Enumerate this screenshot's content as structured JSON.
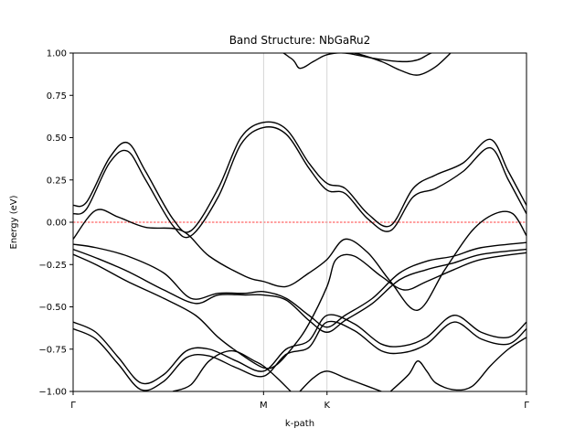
{
  "chart_data": {
    "type": "line",
    "title": "Band Structure: NbGaRu2",
    "xlabel": "k-path",
    "ylabel": "Energy (eV)",
    "xlim": [
      0,
      1
    ],
    "ylim": [
      -1.0,
      1.0
    ],
    "yticks": [
      -1.0,
      -0.75,
      -0.5,
      -0.25,
      0.0,
      0.25,
      0.5,
      0.75,
      1.0
    ],
    "ytick_labels": [
      "−1.00",
      "−0.75",
      "−0.50",
      "−0.25",
      "0.00",
      "0.25",
      "0.50",
      "0.75",
      "1.00"
    ],
    "xticks": [
      {
        "x": 0.0,
        "label": "Γ"
      },
      {
        "x": 0.42,
        "label": "M"
      },
      {
        "x": 0.56,
        "label": "K"
      },
      {
        "x": 1.0,
        "label": "Γ"
      }
    ],
    "vertical_lines": [
      0.42,
      0.56
    ],
    "fermi_level": 0.0,
    "fermi_line_color": "#ff0000",
    "band_color": "#000000",
    "grid": false,
    "series": [
      {
        "values": [
          [
            0.0,
            0.1
          ],
          [
            0.03,
            0.12
          ],
          [
            0.08,
            0.38
          ],
          [
            0.12,
            0.47
          ],
          [
            0.16,
            0.3
          ],
          [
            0.22,
            0.02
          ],
          [
            0.26,
            -0.05
          ],
          [
            0.32,
            0.2
          ],
          [
            0.37,
            0.5
          ],
          [
            0.42,
            0.59
          ],
          [
            0.47,
            0.55
          ],
          [
            0.52,
            0.35
          ],
          [
            0.56,
            0.23
          ],
          [
            0.6,
            0.2
          ],
          [
            0.65,
            0.05
          ],
          [
            0.7,
            -0.02
          ],
          [
            0.75,
            0.2
          ],
          [
            0.8,
            0.28
          ],
          [
            0.86,
            0.35
          ],
          [
            0.92,
            0.49
          ],
          [
            0.96,
            0.3
          ],
          [
            1.0,
            0.1
          ]
        ]
      },
      {
        "values": [
          [
            0.0,
            0.05
          ],
          [
            0.03,
            0.08
          ],
          [
            0.08,
            0.35
          ],
          [
            0.12,
            0.42
          ],
          [
            0.16,
            0.25
          ],
          [
            0.22,
            -0.02
          ],
          [
            0.26,
            -0.08
          ],
          [
            0.32,
            0.15
          ],
          [
            0.37,
            0.46
          ],
          [
            0.42,
            0.56
          ],
          [
            0.47,
            0.52
          ],
          [
            0.52,
            0.32
          ],
          [
            0.56,
            0.19
          ],
          [
            0.6,
            0.17
          ],
          [
            0.65,
            0.02
          ],
          [
            0.7,
            -0.05
          ],
          [
            0.75,
            0.15
          ],
          [
            0.8,
            0.2
          ],
          [
            0.86,
            0.3
          ],
          [
            0.92,
            0.44
          ],
          [
            0.96,
            0.25
          ],
          [
            1.0,
            0.05
          ]
        ]
      },
      {
        "values": [
          [
            0.0,
            -0.1
          ],
          [
            0.05,
            0.07
          ],
          [
            0.1,
            0.03
          ],
          [
            0.16,
            -0.03
          ],
          [
            0.24,
            -0.05
          ],
          [
            0.3,
            -0.2
          ],
          [
            0.38,
            -0.32
          ],
          [
            0.42,
            -0.35
          ],
          [
            0.47,
            -0.38
          ],
          [
            0.52,
            -0.3
          ],
          [
            0.56,
            -0.22
          ],
          [
            0.6,
            -0.1
          ],
          [
            0.65,
            -0.18
          ],
          [
            0.7,
            -0.35
          ],
          [
            0.76,
            -0.52
          ],
          [
            0.82,
            -0.28
          ],
          [
            0.88,
            -0.05
          ],
          [
            0.93,
            0.05
          ],
          [
            0.97,
            0.05
          ],
          [
            1.0,
            -0.08
          ]
        ]
      },
      {
        "values": [
          [
            0.0,
            -0.13
          ],
          [
            0.05,
            -0.15
          ],
          [
            0.12,
            -0.2
          ],
          [
            0.2,
            -0.3
          ],
          [
            0.26,
            -0.45
          ],
          [
            0.32,
            -0.42
          ],
          [
            0.38,
            -0.42
          ],
          [
            0.42,
            -0.41
          ],
          [
            0.47,
            -0.45
          ],
          [
            0.52,
            -0.55
          ],
          [
            0.56,
            -0.62
          ],
          [
            0.6,
            -0.55
          ],
          [
            0.66,
            -0.45
          ],
          [
            0.72,
            -0.3
          ],
          [
            0.78,
            -0.23
          ],
          [
            0.84,
            -0.2
          ],
          [
            0.9,
            -0.15
          ],
          [
            1.0,
            -0.12
          ]
        ]
      },
      {
        "values": [
          [
            0.0,
            -0.16
          ],
          [
            0.05,
            -0.21
          ],
          [
            0.12,
            -0.29
          ],
          [
            0.2,
            -0.4
          ],
          [
            0.27,
            -0.48
          ],
          [
            0.32,
            -0.43
          ],
          [
            0.38,
            -0.43
          ],
          [
            0.42,
            -0.43
          ],
          [
            0.47,
            -0.46
          ],
          [
            0.52,
            -0.58
          ],
          [
            0.56,
            -0.65
          ],
          [
            0.6,
            -0.58
          ],
          [
            0.66,
            -0.48
          ],
          [
            0.72,
            -0.34
          ],
          [
            0.78,
            -0.28
          ],
          [
            0.84,
            -0.24
          ],
          [
            0.9,
            -0.19
          ],
          [
            1.0,
            -0.16
          ]
        ]
      },
      {
        "values": [
          [
            0.0,
            -0.19
          ],
          [
            0.05,
            -0.25
          ],
          [
            0.12,
            -0.35
          ],
          [
            0.2,
            -0.45
          ],
          [
            0.27,
            -0.55
          ],
          [
            0.32,
            -0.68
          ],
          [
            0.37,
            -0.78
          ],
          [
            0.42,
            -0.86
          ],
          [
            0.45,
            -0.84
          ],
          [
            0.49,
            -0.72
          ],
          [
            0.52,
            -0.6
          ],
          [
            0.56,
            -0.38
          ],
          [
            0.58,
            -0.22
          ],
          [
            0.62,
            -0.2
          ],
          [
            0.68,
            -0.32
          ],
          [
            0.73,
            -0.4
          ],
          [
            0.78,
            -0.35
          ],
          [
            0.84,
            -0.28
          ],
          [
            0.9,
            -0.22
          ],
          [
            1.0,
            -0.18
          ]
        ]
      },
      {
        "values": [
          [
            0.0,
            -0.59
          ],
          [
            0.05,
            -0.65
          ],
          [
            0.1,
            -0.8
          ],
          [
            0.15,
            -0.95
          ],
          [
            0.2,
            -0.9
          ],
          [
            0.25,
            -0.76
          ],
          [
            0.3,
            -0.75
          ],
          [
            0.36,
            -0.82
          ],
          [
            0.42,
            -0.88
          ],
          [
            0.47,
            -0.75
          ],
          [
            0.52,
            -0.7
          ],
          [
            0.56,
            -0.55
          ],
          [
            0.62,
            -0.6
          ],
          [
            0.68,
            -0.72
          ],
          [
            0.73,
            -0.73
          ],
          [
            0.78,
            -0.68
          ],
          [
            0.84,
            -0.55
          ],
          [
            0.9,
            -0.65
          ],
          [
            0.96,
            -0.68
          ],
          [
            1.0,
            -0.59
          ]
        ]
      },
      {
        "values": [
          [
            0.0,
            -0.63
          ],
          [
            0.05,
            -0.69
          ],
          [
            0.1,
            -0.84
          ],
          [
            0.15,
            -0.99
          ],
          [
            0.2,
            -0.94
          ],
          [
            0.25,
            -0.8
          ],
          [
            0.3,
            -0.79
          ],
          [
            0.36,
            -0.86
          ],
          [
            0.42,
            -0.91
          ],
          [
            0.47,
            -0.78
          ],
          [
            0.52,
            -0.74
          ],
          [
            0.56,
            -0.59
          ],
          [
            0.62,
            -0.64
          ],
          [
            0.68,
            -0.76
          ],
          [
            0.73,
            -0.77
          ],
          [
            0.78,
            -0.72
          ],
          [
            0.84,
            -0.59
          ],
          [
            0.9,
            -0.69
          ],
          [
            0.96,
            -0.72
          ],
          [
            1.0,
            -0.63
          ]
        ]
      },
      {
        "values": [
          [
            0.0,
            1.1
          ],
          [
            0.2,
            1.05
          ],
          [
            0.42,
            1.03
          ],
          [
            0.48,
            0.97
          ],
          [
            0.5,
            0.91
          ],
          [
            0.53,
            0.95
          ],
          [
            0.56,
            0.99
          ],
          [
            0.6,
            1.0
          ],
          [
            0.66,
            0.97
          ],
          [
            0.72,
            0.95
          ],
          [
            0.76,
            0.96
          ],
          [
            0.82,
            1.02
          ],
          [
            1.0,
            1.05
          ]
        ]
      },
      {
        "values": [
          [
            0.56,
            1.01
          ],
          [
            0.62,
            1.0
          ],
          [
            0.68,
            0.95
          ],
          [
            0.72,
            0.9
          ],
          [
            0.76,
            0.87
          ],
          [
            0.8,
            0.92
          ],
          [
            0.84,
            1.02
          ]
        ]
      },
      {
        "values": [
          [
            0.22,
            -1.0
          ],
          [
            0.26,
            -0.96
          ],
          [
            0.3,
            -0.82
          ],
          [
            0.35,
            -0.76
          ],
          [
            0.4,
            -0.82
          ],
          [
            0.42,
            -0.85
          ],
          [
            0.45,
            -0.92
          ],
          [
            0.48,
            -1.0
          ]
        ]
      },
      {
        "values": [
          [
            0.5,
            -1.0
          ],
          [
            0.53,
            -0.92
          ],
          [
            0.56,
            -0.88
          ],
          [
            0.6,
            -0.92
          ],
          [
            0.65,
            -0.97
          ],
          [
            0.68,
            -1.0
          ]
        ]
      },
      {
        "values": [
          [
            0.7,
            -1.0
          ],
          [
            0.74,
            -0.9
          ],
          [
            0.76,
            -0.82
          ],
          [
            0.78,
            -0.88
          ],
          [
            0.8,
            -0.95
          ],
          [
            0.84,
            -0.99
          ],
          [
            0.88,
            -0.97
          ],
          [
            0.92,
            -0.85
          ],
          [
            0.96,
            -0.75
          ],
          [
            1.0,
            -0.68
          ]
        ]
      }
    ]
  }
}
